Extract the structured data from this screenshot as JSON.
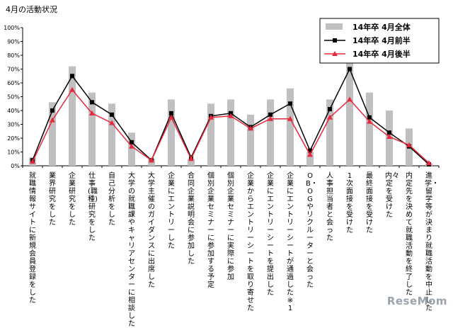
{
  "title": "4月の活動状況",
  "watermark": "ReseMom",
  "chart_data": {
    "type": "bar",
    "title": "4月の活動状況",
    "xlabel": "",
    "ylabel": "",
    "ylim": [
      0,
      100
    ],
    "yticks": [
      "0%",
      "10%",
      "20%",
      "30%",
      "40%",
      "50%",
      "60%",
      "70%",
      "80%",
      "90%",
      "100%"
    ],
    "grid": false,
    "legend_position": "top-right",
    "categories": [
      "就職情報サイトに新規会員登録をした",
      "業界研究をした",
      "企業研究をした",
      "仕事(職種)研究をした",
      "自己分析をした",
      "大学の就職課やキャリアセンターに相談した",
      "大学主催のガイダンスに出席した",
      "企業にエントリーした",
      "合同企業説明会に参加した",
      "個別企業セミナーに参加する予定",
      "個別企業セミナーに実際に参加",
      "企業からエントリーシートを取り寄せた",
      "企業にエントリーシートを提出した",
      "企業にエントリーシートが通過した※1",
      "OB・OGやリクルーターと会った",
      "人事担当者と会った",
      "1次面接を受けた",
      "最終面接を受けた",
      "内々定を受けた",
      "内定先を決めて就職活動を終了した",
      "進学・留学等が決まり就職活動を中止した"
    ],
    "series": [
      {
        "name": "14年卒 4月全体",
        "type": "bar",
        "color": "#c0c0c0",
        "values": [
          6,
          46,
          72,
          53,
          45,
          24,
          5,
          48,
          5,
          45,
          48,
          37,
          48,
          56,
          10,
          48,
          78,
          53,
          40,
          27,
          2
        ]
      },
      {
        "name": "14年卒 4月前半",
        "type": "line",
        "color": "#000000",
        "marker": "square",
        "values": [
          4,
          40,
          65,
          46,
          37,
          17,
          4,
          38,
          6,
          36,
          38,
          28,
          37,
          45,
          11,
          41,
          70,
          35,
          24,
          14,
          1
        ]
      },
      {
        "name": "14年卒 4月後半",
        "type": "line",
        "color": "#e8283c",
        "marker": "triangle",
        "values": [
          3,
          33,
          55,
          38,
          31,
          14,
          4,
          35,
          5,
          35,
          36,
          27,
          34,
          34,
          8,
          35,
          48,
          32,
          21,
          15,
          2
        ]
      }
    ]
  }
}
